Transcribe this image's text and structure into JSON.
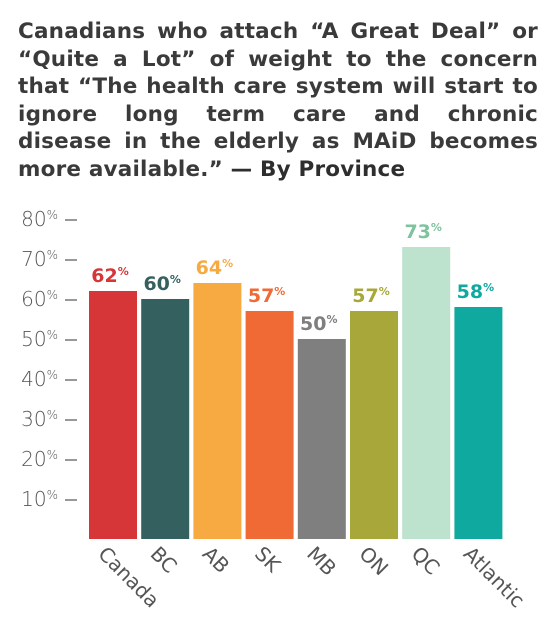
{
  "chart_data": {
    "type": "bar",
    "title": "Canadians who attach “A Great Deal” or “Quite a Lot” of weight to the concern that “The health care system will start to ignore long term care and chronic disease in the elderly as MAiD becomes more available.”",
    "title_suffix": "— By Province",
    "categories": [
      "Canada",
      "BC",
      "AB",
      "SK",
      "MB",
      "ON",
      "QC",
      "Atlantic"
    ],
    "values": [
      62,
      60,
      64,
      57,
      50,
      57,
      73,
      58
    ],
    "value_suffix": "%",
    "bar_colors": [
      "#d63638",
      "#356060",
      "#f8aa42",
      "#f06a35",
      "#7f7f7f",
      "#a8a83a",
      "#bde2cd",
      "#0fa99f"
    ],
    "label_colors": [
      "#d63638",
      "#356060",
      "#f8aa42",
      "#f06a35",
      "#7f7f7f",
      "#a8a83a",
      "#7fc29e",
      "#0fa99f"
    ],
    "yticks": [
      10,
      20,
      30,
      40,
      50,
      60,
      70,
      80
    ],
    "ytick_suffix": "%",
    "ylim": [
      0,
      80
    ],
    "xlabel": "",
    "ylabel": "",
    "grid": false,
    "legend": "none"
  }
}
